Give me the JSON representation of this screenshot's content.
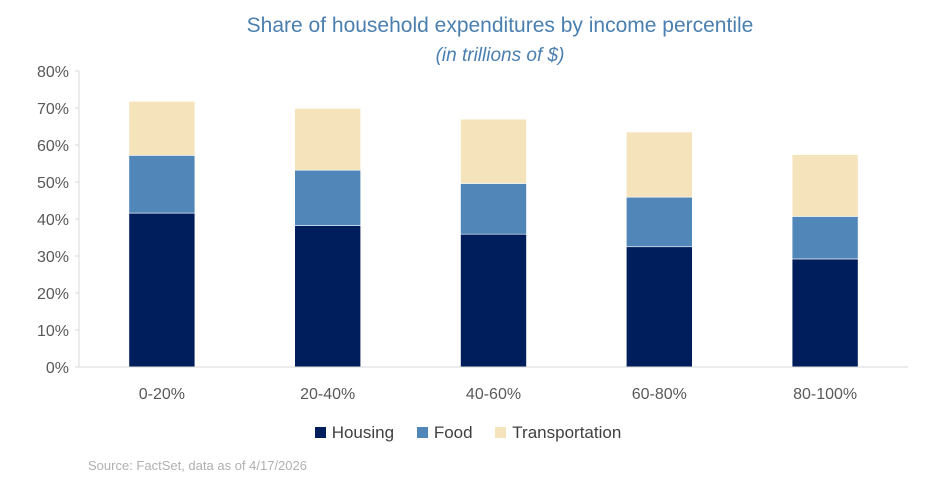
{
  "chart_data": {
    "type": "bar",
    "stacked": true,
    "title": "Share of household expenditures by income percentile",
    "subtitle": "(in trillions of $)",
    "categories": [
      "0-20%",
      "20-40%",
      "40-60%",
      "60-80%",
      "80-100%"
    ],
    "series": [
      {
        "name": "Housing",
        "color": "#001e5c",
        "values": [
          41.6,
          38.2,
          35.9,
          32.5,
          29.2
        ]
      },
      {
        "name": "Food",
        "color": "#5087b8",
        "values": [
          15.6,
          15.0,
          13.7,
          13.4,
          11.5
        ]
      },
      {
        "name": "Transportation",
        "color": "#f5e3bb",
        "values": [
          14.6,
          16.7,
          17.4,
          17.6,
          16.7
        ]
      }
    ],
    "ylim": [
      0,
      80
    ],
    "yticks": [
      "0%",
      "10%",
      "20%",
      "30%",
      "40%",
      "50%",
      "60%",
      "70%",
      "80%"
    ],
    "grid": false,
    "legend": "bottom",
    "source": "Source: FactSet, data as of 4/17/2026"
  }
}
